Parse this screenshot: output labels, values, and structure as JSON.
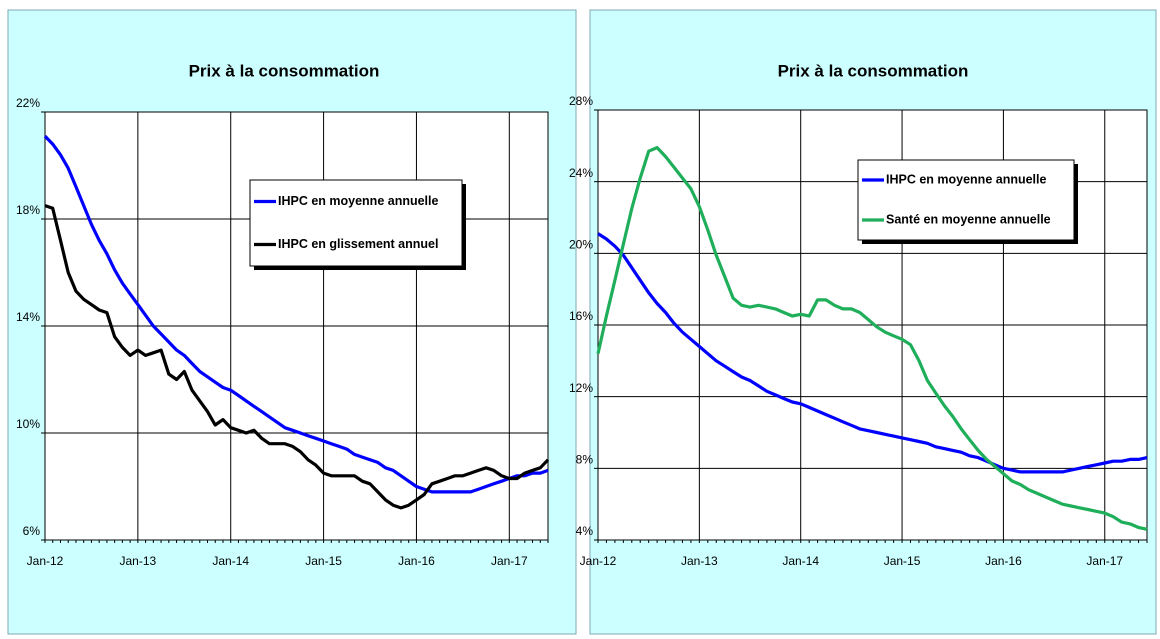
{
  "chart_data": [
    {
      "type": "line",
      "title": "Prix à la consommation",
      "categories": [
        "Jan-12",
        null,
        null,
        null,
        null,
        null,
        null,
        null,
        null,
        null,
        null,
        null,
        "Jan-13",
        null,
        null,
        null,
        null,
        null,
        null,
        null,
        null,
        null,
        null,
        null,
        "Jan-14",
        null,
        null,
        null,
        null,
        null,
        null,
        null,
        null,
        null,
        null,
        null,
        "Jan-15",
        null,
        null,
        null,
        null,
        null,
        null,
        null,
        null,
        null,
        null,
        null,
        "Jan-16",
        null,
        null,
        null,
        null,
        null,
        null,
        null,
        null,
        null,
        null,
        null,
        "Jan-17",
        null,
        null,
        null,
        null,
        null
      ],
      "ylim": [
        6,
        22
      ],
      "yticks": [
        {
          "value": 6,
          "label": "6%"
        },
        {
          "value": 10,
          "label": "10%"
        },
        {
          "value": 14,
          "label": "14%"
        },
        {
          "value": 18,
          "label": "18%"
        },
        {
          "value": 22,
          "label": "22%"
        }
      ],
      "grid": true,
      "series": [
        {
          "name": "IHPC en moyenne annuelle",
          "color": "#0000ff",
          "values": [
            21.1,
            20.8,
            20.4,
            19.9,
            19.2,
            18.5,
            17.8,
            17.2,
            16.7,
            16.1,
            15.6,
            15.2,
            14.8,
            14.4,
            14.0,
            13.7,
            13.4,
            13.1,
            12.9,
            12.6,
            12.3,
            12.1,
            11.9,
            11.7,
            11.6,
            11.4,
            11.2,
            11.0,
            10.8,
            10.6,
            10.4,
            10.2,
            10.1,
            10.0,
            9.9,
            9.8,
            9.7,
            9.6,
            9.5,
            9.4,
            9.2,
            9.1,
            9.0,
            8.9,
            8.7,
            8.6,
            8.4,
            8.2,
            8.0,
            7.9,
            7.8,
            7.8,
            7.8,
            7.8,
            7.8,
            7.8,
            7.9,
            8.0,
            8.1,
            8.2,
            8.3,
            8.4,
            8.4,
            8.5,
            8.5,
            8.6
          ]
        },
        {
          "name": "IHPC en glissement annuel",
          "color": "#000000",
          "values": [
            18.5,
            18.4,
            17.2,
            16.0,
            15.3,
            15.0,
            14.8,
            14.6,
            14.5,
            13.6,
            13.2,
            12.9,
            13.1,
            12.9,
            13.0,
            13.1,
            12.2,
            12.0,
            12.3,
            11.6,
            11.2,
            10.8,
            10.3,
            10.5,
            10.2,
            10.1,
            10.0,
            10.1,
            9.8,
            9.6,
            9.6,
            9.6,
            9.5,
            9.3,
            9.0,
            8.8,
            8.5,
            8.4,
            8.4,
            8.4,
            8.4,
            8.2,
            8.1,
            7.8,
            7.5,
            7.3,
            7.2,
            7.3,
            7.5,
            7.7,
            8.1,
            8.2,
            8.3,
            8.4,
            8.4,
            8.5,
            8.6,
            8.7,
            8.6,
            8.4,
            8.3,
            8.3,
            8.5,
            8.6,
            8.7,
            9.0
          ]
        }
      ]
    },
    {
      "type": "line",
      "title": "Prix à la consommation",
      "categories": [
        "Jan-12",
        null,
        null,
        null,
        null,
        null,
        null,
        null,
        null,
        null,
        null,
        null,
        "Jan-13",
        null,
        null,
        null,
        null,
        null,
        null,
        null,
        null,
        null,
        null,
        null,
        "Jan-14",
        null,
        null,
        null,
        null,
        null,
        null,
        null,
        null,
        null,
        null,
        null,
        "Jan-15",
        null,
        null,
        null,
        null,
        null,
        null,
        null,
        null,
        null,
        null,
        null,
        "Jan-16",
        null,
        null,
        null,
        null,
        null,
        null,
        null,
        null,
        null,
        null,
        null,
        "Jan-17",
        null,
        null,
        null,
        null,
        null
      ],
      "ylim": [
        4,
        28
      ],
      "yticks": [
        {
          "value": 4,
          "label": "4%"
        },
        {
          "value": 8,
          "label": "8%"
        },
        {
          "value": 12,
          "label": "12%"
        },
        {
          "value": 16,
          "label": "16%"
        },
        {
          "value": 20,
          "label": "20%"
        },
        {
          "value": 24,
          "label": "24%"
        },
        {
          "value": 28,
          "label": "28%"
        }
      ],
      "grid": true,
      "series": [
        {
          "name": "IHPC en moyenne annuelle",
          "color": "#0000ff",
          "values": [
            21.1,
            20.8,
            20.4,
            19.9,
            19.2,
            18.5,
            17.8,
            17.2,
            16.7,
            16.1,
            15.6,
            15.2,
            14.8,
            14.4,
            14.0,
            13.7,
            13.4,
            13.1,
            12.9,
            12.6,
            12.3,
            12.1,
            11.9,
            11.7,
            11.6,
            11.4,
            11.2,
            11.0,
            10.8,
            10.6,
            10.4,
            10.2,
            10.1,
            10.0,
            9.9,
            9.8,
            9.7,
            9.6,
            9.5,
            9.4,
            9.2,
            9.1,
            9.0,
            8.9,
            8.7,
            8.6,
            8.4,
            8.2,
            8.0,
            7.9,
            7.8,
            7.8,
            7.8,
            7.8,
            7.8,
            7.8,
            7.9,
            8.0,
            8.1,
            8.2,
            8.3,
            8.4,
            8.4,
            8.5,
            8.5,
            8.6
          ]
        },
        {
          "name": "Santé en moyenne annuelle",
          "color": "#1fae5a",
          "values": [
            14.4,
            16.5,
            18.5,
            20.5,
            22.5,
            24.2,
            25.7,
            25.9,
            25.4,
            24.8,
            24.2,
            23.6,
            22.6,
            21.3,
            19.9,
            18.7,
            17.5,
            17.1,
            17.0,
            17.1,
            17.0,
            16.9,
            16.7,
            16.5,
            16.6,
            16.5,
            17.4,
            17.4,
            17.1,
            16.9,
            16.9,
            16.7,
            16.3,
            15.9,
            15.6,
            15.4,
            15.2,
            14.9,
            14.0,
            12.9,
            12.2,
            11.5,
            10.9,
            10.2,
            9.6,
            9.0,
            8.5,
            8.1,
            7.7,
            7.3,
            7.1,
            6.8,
            6.6,
            6.4,
            6.2,
            6.0,
            5.9,
            5.8,
            5.7,
            5.6,
            5.5,
            5.3,
            5.0,
            4.9,
            4.7,
            4.6
          ]
        }
      ]
    }
  ]
}
